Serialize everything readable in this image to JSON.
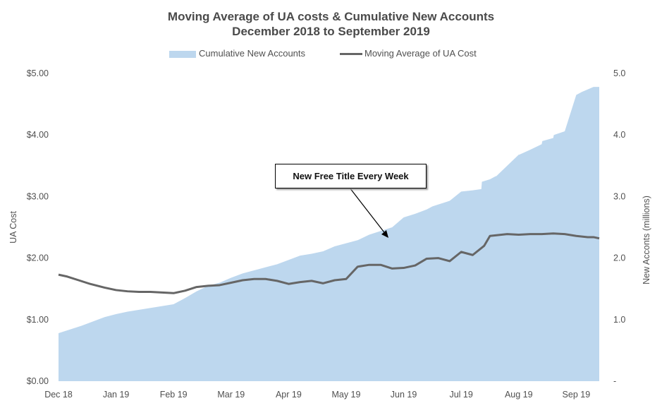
{
  "chart_data": {
    "type": "line",
    "title": "Moving Average of UA costs & Cumulative New Accounts",
    "subtitle": "December 2018 to September 2019",
    "xlabel": "",
    "ylabel": "UA Cost",
    "y2label": "New Acconts (millions)",
    "x_ticks": [
      "Dec 18",
      "Jan 19",
      "Feb 19",
      "Mar 19",
      "Apr 19",
      "May 19",
      "Jun 19",
      "Jul 19",
      "Aug 19",
      "Sep 19"
    ],
    "y_ticks": [
      "$0.00",
      "$1.00",
      "$2.00",
      "$3.00",
      "$4.00",
      "$5.00"
    ],
    "y2_ticks": [
      "-",
      "1.0",
      "2.0",
      "3.0",
      "4.0",
      "5.0"
    ],
    "ylim": [
      0,
      5
    ],
    "y2lim": [
      0,
      5
    ],
    "xlim": [
      0,
      9.4
    ],
    "legend_position": "top",
    "grid": false,
    "annotation": "New Free Title Every Week",
    "series": [
      {
        "name": "Cumulative New Accounts",
        "kind": "area",
        "axis": "right",
        "color": "#bdd7ee",
        "x": [
          0,
          0.2,
          0.4,
          0.6,
          0.8,
          1.0,
          1.2,
          1.4,
          1.6,
          1.8,
          2.0,
          2.2,
          2.4,
          2.6,
          2.8,
          3.0,
          3.2,
          3.4,
          3.6,
          3.8,
          4.0,
          4.2,
          4.4,
          4.6,
          4.8,
          5.0,
          5.2,
          5.4,
          5.6,
          5.8,
          6.0,
          6.2,
          6.4,
          6.5,
          6.6,
          6.8,
          7.0,
          7.2,
          7.35,
          7.36,
          7.5,
          7.6,
          7.61,
          7.8,
          8.0,
          8.01,
          8.2,
          8.4,
          8.41,
          8.6,
          8.61,
          8.8,
          9.0,
          9.1,
          9.3,
          9.4
        ],
        "values": [
          0.78,
          0.84,
          0.9,
          0.97,
          1.04,
          1.09,
          1.13,
          1.16,
          1.19,
          1.22,
          1.25,
          1.35,
          1.46,
          1.55,
          1.6,
          1.68,
          1.75,
          1.8,
          1.85,
          1.9,
          1.97,
          2.04,
          2.07,
          2.11,
          2.19,
          2.24,
          2.29,
          2.38,
          2.44,
          2.5,
          2.66,
          2.72,
          2.79,
          2.84,
          2.87,
          2.93,
          3.08,
          3.1,
          3.12,
          3.24,
          3.28,
          3.33,
          3.33,
          3.5,
          3.68,
          3.68,
          3.76,
          3.85,
          3.9,
          3.95,
          4.0,
          4.06,
          4.65,
          4.7,
          4.78,
          4.78
        ]
      },
      {
        "name": "Moving Average of UA Cost",
        "kind": "line",
        "axis": "left",
        "color": "#666666",
        "x": [
          0,
          0.15,
          0.35,
          0.55,
          0.8,
          1.0,
          1.2,
          1.4,
          1.6,
          1.8,
          2.0,
          2.2,
          2.4,
          2.6,
          2.8,
          3.0,
          3.2,
          3.4,
          3.6,
          3.8,
          4.0,
          4.2,
          4.4,
          4.6,
          4.8,
          5.0,
          5.2,
          5.4,
          5.6,
          5.8,
          6.0,
          6.2,
          6.4,
          6.6,
          6.8,
          7.0,
          7.2,
          7.4,
          7.5,
          7.6,
          7.8,
          8.0,
          8.2,
          8.4,
          8.6,
          8.8,
          9.0,
          9.1,
          9.2,
          9.3,
          9.4
        ],
        "values": [
          1.73,
          1.7,
          1.64,
          1.58,
          1.52,
          1.48,
          1.46,
          1.45,
          1.45,
          1.44,
          1.43,
          1.47,
          1.53,
          1.55,
          1.56,
          1.6,
          1.64,
          1.66,
          1.66,
          1.63,
          1.58,
          1.61,
          1.63,
          1.59,
          1.64,
          1.66,
          1.86,
          1.89,
          1.89,
          1.83,
          1.84,
          1.88,
          1.99,
          2.0,
          1.95,
          2.1,
          2.05,
          2.2,
          2.36,
          2.37,
          2.39,
          2.38,
          2.39,
          2.39,
          2.4,
          2.39,
          2.36,
          2.35,
          2.34,
          2.34,
          2.32
        ]
      }
    ]
  }
}
